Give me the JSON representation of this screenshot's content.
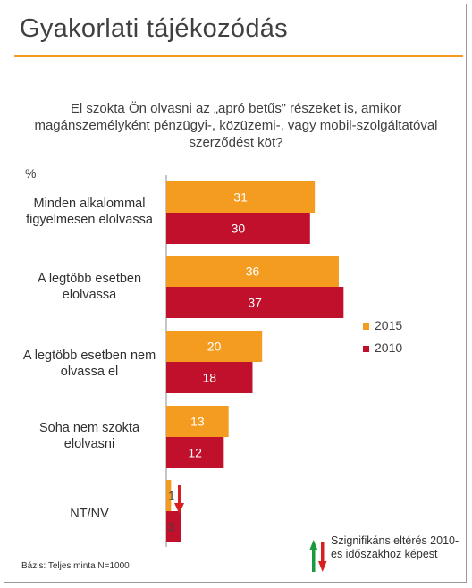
{
  "page": {
    "title": "Gyakorlati tájékozódás",
    "question": "El szokta Ön olvasni az „apró betűs” részeket is, amikor magánszemélyként pénzügyi-, közüzemi-, vagy mobil-szolgáltatóval szerződést köt?",
    "unit_label": "%",
    "significance_note": "Szignifikáns eltérés 2010-es időszakhoz képest",
    "base_note": "Bázis: Teljes minta N=1000"
  },
  "colors": {
    "accent": "#f39c1f",
    "series_2015": "#f39c1f",
    "series_2010": "#c0102c",
    "arrow_up": "#1a9a3c",
    "arrow_down": "#d81e1e"
  },
  "chart_data": {
    "type": "bar",
    "orientation": "horizontal",
    "categories": [
      "Minden alkalommal figyelmesen elolvassa",
      "A legtöbb esetben elolvassa",
      "A legtöbb esetben nem olvassa el",
      "Soha nem szokta elolvasni",
      "NT/NV"
    ],
    "series": [
      {
        "name": "2015",
        "color": "#f39c1f",
        "values": [
          31,
          36,
          20,
          13,
          1
        ]
      },
      {
        "name": "2010",
        "color": "#c0102c",
        "values": [
          30,
          37,
          18,
          12,
          3
        ]
      }
    ],
    "significant_decrease": [
      false,
      false,
      false,
      false,
      true
    ],
    "xlim": [
      0,
      40
    ],
    "legend_position": "right",
    "grid": false
  }
}
